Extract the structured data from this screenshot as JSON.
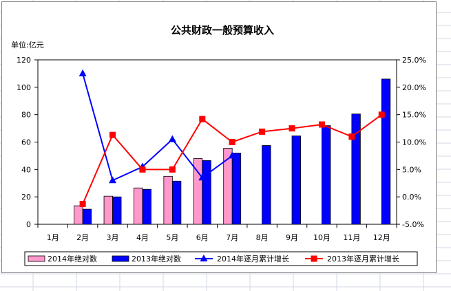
{
  "colors": {
    "bar_2014": "#ff99cc",
    "bar_2013": "#0000ff",
    "line_2014": "#0000ff",
    "line_2013": "#ff0000",
    "sheet_grid": "#d0d7e5"
  },
  "chart_data": {
    "type": "bar",
    "title": "公共财政一般预算收入",
    "unit_label": "单位:亿元",
    "categories": [
      "1月",
      "2月",
      "3月",
      "4月",
      "5月",
      "6月",
      "7月",
      "8月",
      "9月",
      "10月",
      "11月",
      "12月"
    ],
    "y_left": {
      "min": 0,
      "max": 120,
      "step": 20,
      "ticks": [
        "0",
        "20",
        "40",
        "60",
        "80",
        "100",
        "120"
      ]
    },
    "y_right": {
      "min": -5,
      "max": 25,
      "step": 5,
      "ticks": [
        "-5.0%",
        "0.0%",
        "5.0%",
        "10.0%",
        "15.0%",
        "20.0%",
        "25.0%"
      ]
    },
    "grid": false,
    "legend_position": "bottom",
    "series": [
      {
        "name": "2014年绝对数",
        "kind": "bar",
        "axis": "left",
        "values": [
          null,
          13.5,
          20.5,
          26.5,
          35,
          48,
          55.5,
          null,
          null,
          null,
          null,
          null
        ]
      },
      {
        "name": "2013年绝对数",
        "kind": "bar",
        "axis": "left",
        "values": [
          null,
          11,
          20,
          25.5,
          31.5,
          46.5,
          52,
          57.5,
          64.5,
          72,
          80.5,
          106
        ]
      },
      {
        "name": "2014年逐月累计增长",
        "kind": "line",
        "marker": "triangle",
        "axis": "right",
        "values": [
          null,
          22.5,
          3,
          5.5,
          10.5,
          3.5,
          7.5,
          null,
          null,
          null,
          null,
          null
        ]
      },
      {
        "name": "2013年逐月累计增长",
        "kind": "line",
        "marker": "square",
        "axis": "right",
        "values": [
          null,
          -1.3,
          11.3,
          5,
          5,
          14.2,
          10,
          11.9,
          12.5,
          13.2,
          11,
          15
        ]
      }
    ]
  }
}
